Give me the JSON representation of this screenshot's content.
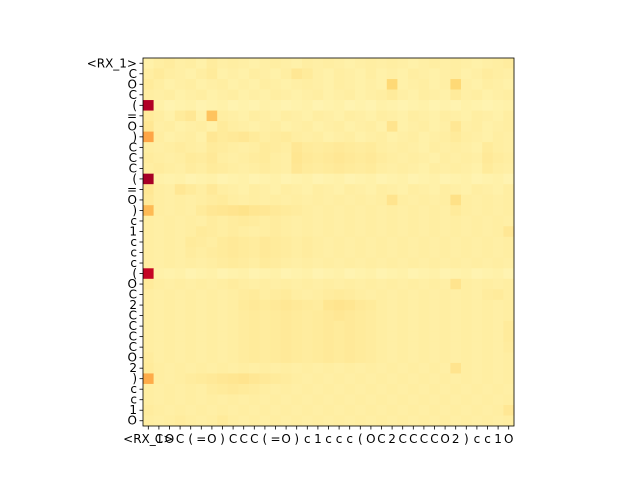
{
  "chart_data": {
    "type": "heatmap",
    "title": "",
    "xlabel": "",
    "ylabel": "",
    "row_labels": [
      "<RX_1>",
      "C",
      "O",
      "C",
      "(",
      "=",
      "O",
      ")",
      "C",
      "C",
      "C",
      "(",
      "=",
      "O",
      ")",
      "c",
      "1",
      "c",
      "c",
      "c",
      "(",
      "O",
      "C",
      "2",
      "C",
      "C",
      "C",
      "C",
      "O",
      "2",
      ")",
      "c",
      "c",
      "1",
      "O"
    ],
    "col_labels": [
      "<RX_1>",
      "C",
      "O",
      "C",
      "(",
      "=",
      "O",
      ")",
      "C",
      "C",
      "C",
      "(",
      "=",
      "O",
      ")",
      "c",
      "1",
      "c",
      "c",
      "c",
      "(",
      "O",
      "C",
      "2",
      "C",
      "C",
      "C",
      "C",
      "O",
      "2",
      ")",
      "c",
      "c",
      "1",
      "O"
    ],
    "colormap": "YlOrRd",
    "colormap_stops": [
      "#ffffcc",
      "#ffeda0",
      "#fed976",
      "#feb24c",
      "#fd8d3c",
      "#fc4e2a",
      "#e31a1c",
      "#bd0026",
      "#800026"
    ],
    "value_range": [
      0,
      1
    ],
    "grid": false,
    "values": [
      [
        0.1,
        0.12,
        0.13,
        0.11,
        0.12,
        0.1,
        0.13,
        0.11,
        0.12,
        0.11,
        0.1,
        0.11,
        0.12,
        0.11,
        0.1,
        0.12,
        0.11,
        0.12,
        0.11,
        0.1,
        0.11,
        0.12,
        0.11,
        0.12,
        0.11,
        0.1,
        0.11,
        0.12,
        0.11,
        0.12,
        0.11,
        0.1,
        0.11,
        0.12,
        0.13
      ],
      [
        0.12,
        0.14,
        0.12,
        0.11,
        0.1,
        0.12,
        0.14,
        0.1,
        0.11,
        0.1,
        0.12,
        0.11,
        0.1,
        0.12,
        0.16,
        0.14,
        0.11,
        0.1,
        0.12,
        0.11,
        0.1,
        0.12,
        0.1,
        0.11,
        0.1,
        0.12,
        0.11,
        0.1,
        0.11,
        0.12,
        0.1,
        0.11,
        0.13,
        0.12,
        0.11
      ],
      [
        0.14,
        0.12,
        0.1,
        0.11,
        0.12,
        0.1,
        0.11,
        0.12,
        0.1,
        0.11,
        0.1,
        0.12,
        0.11,
        0.1,
        0.11,
        0.12,
        0.11,
        0.1,
        0.12,
        0.11,
        0.1,
        0.11,
        0.1,
        0.25,
        0.1,
        0.11,
        0.12,
        0.1,
        0.11,
        0.25,
        0.11,
        0.1,
        0.12,
        0.11,
        0.1
      ],
      [
        0.12,
        0.11,
        0.12,
        0.1,
        0.11,
        0.12,
        0.1,
        0.11,
        0.12,
        0.1,
        0.11,
        0.1,
        0.12,
        0.11,
        0.1,
        0.11,
        0.12,
        0.1,
        0.11,
        0.12,
        0.1,
        0.11,
        0.12,
        0.14,
        0.11,
        0.1,
        0.12,
        0.11,
        0.1,
        0.14,
        0.11,
        0.12,
        0.1,
        0.11,
        0.12
      ],
      [
        0.9,
        0.1,
        0.08,
        0.09,
        0.1,
        0.08,
        0.09,
        0.1,
        0.08,
        0.09,
        0.08,
        0.1,
        0.09,
        0.08,
        0.09,
        0.1,
        0.08,
        0.09,
        0.1,
        0.08,
        0.09,
        0.08,
        0.1,
        0.09,
        0.08,
        0.09,
        0.1,
        0.08,
        0.09,
        0.08,
        0.1,
        0.09,
        0.08,
        0.09,
        0.1
      ],
      [
        0.14,
        0.12,
        0.1,
        0.14,
        0.16,
        0.1,
        0.32,
        0.12,
        0.11,
        0.1,
        0.12,
        0.11,
        0.1,
        0.12,
        0.11,
        0.1,
        0.12,
        0.11,
        0.1,
        0.12,
        0.11,
        0.1,
        0.12,
        0.11,
        0.1,
        0.12,
        0.11,
        0.1,
        0.12,
        0.11,
        0.1,
        0.12,
        0.11,
        0.1,
        0.12
      ],
      [
        0.16,
        0.11,
        0.12,
        0.1,
        0.11,
        0.12,
        0.1,
        0.14,
        0.12,
        0.11,
        0.1,
        0.11,
        0.12,
        0.1,
        0.11,
        0.12,
        0.1,
        0.11,
        0.12,
        0.1,
        0.11,
        0.12,
        0.1,
        0.18,
        0.1,
        0.11,
        0.12,
        0.1,
        0.11,
        0.16,
        0.11,
        0.12,
        0.1,
        0.11,
        0.12
      ],
      [
        0.42,
        0.12,
        0.1,
        0.11,
        0.12,
        0.1,
        0.16,
        0.14,
        0.15,
        0.16,
        0.14,
        0.12,
        0.13,
        0.14,
        0.12,
        0.11,
        0.12,
        0.1,
        0.11,
        0.12,
        0.1,
        0.11,
        0.12,
        0.1,
        0.11,
        0.12,
        0.1,
        0.11,
        0.12,
        0.14,
        0.12,
        0.11,
        0.1,
        0.12,
        0.11
      ],
      [
        0.12,
        0.11,
        0.12,
        0.13,
        0.12,
        0.11,
        0.14,
        0.13,
        0.12,
        0.11,
        0.12,
        0.14,
        0.13,
        0.12,
        0.16,
        0.14,
        0.13,
        0.14,
        0.15,
        0.14,
        0.13,
        0.14,
        0.12,
        0.11,
        0.12,
        0.11,
        0.1,
        0.12,
        0.11,
        0.12,
        0.11,
        0.1,
        0.14,
        0.12,
        0.11
      ],
      [
        0.13,
        0.12,
        0.11,
        0.12,
        0.14,
        0.13,
        0.15,
        0.12,
        0.11,
        0.12,
        0.13,
        0.14,
        0.12,
        0.11,
        0.17,
        0.15,
        0.14,
        0.15,
        0.16,
        0.15,
        0.14,
        0.15,
        0.13,
        0.12,
        0.11,
        0.12,
        0.11,
        0.1,
        0.12,
        0.11,
        0.12,
        0.11,
        0.15,
        0.13,
        0.12
      ],
      [
        0.12,
        0.13,
        0.12,
        0.11,
        0.13,
        0.12,
        0.14,
        0.13,
        0.12,
        0.11,
        0.12,
        0.13,
        0.12,
        0.11,
        0.16,
        0.14,
        0.13,
        0.14,
        0.15,
        0.14,
        0.13,
        0.14,
        0.12,
        0.11,
        0.12,
        0.11,
        0.1,
        0.12,
        0.11,
        0.12,
        0.11,
        0.1,
        0.14,
        0.12,
        0.11
      ],
      [
        0.92,
        0.1,
        0.09,
        0.1,
        0.08,
        0.09,
        0.1,
        0.08,
        0.09,
        0.1,
        0.08,
        0.09,
        0.1,
        0.08,
        0.09,
        0.1,
        0.08,
        0.09,
        0.1,
        0.08,
        0.09,
        0.1,
        0.08,
        0.09,
        0.1,
        0.08,
        0.09,
        0.1,
        0.08,
        0.09,
        0.1,
        0.08,
        0.09,
        0.1,
        0.08
      ],
      [
        0.16,
        0.12,
        0.11,
        0.16,
        0.14,
        0.12,
        0.15,
        0.12,
        0.11,
        0.1,
        0.12,
        0.11,
        0.1,
        0.12,
        0.11,
        0.1,
        0.12,
        0.11,
        0.1,
        0.12,
        0.11,
        0.1,
        0.12,
        0.11,
        0.1,
        0.12,
        0.11,
        0.1,
        0.12,
        0.11,
        0.1,
        0.12,
        0.11,
        0.1,
        0.12
      ],
      [
        0.15,
        0.12,
        0.11,
        0.12,
        0.11,
        0.12,
        0.13,
        0.14,
        0.12,
        0.11,
        0.12,
        0.11,
        0.12,
        0.11,
        0.12,
        0.11,
        0.12,
        0.11,
        0.12,
        0.11,
        0.12,
        0.11,
        0.12,
        0.18,
        0.12,
        0.11,
        0.12,
        0.11,
        0.12,
        0.2,
        0.12,
        0.11,
        0.12,
        0.11,
        0.12
      ],
      [
        0.35,
        0.12,
        0.11,
        0.12,
        0.11,
        0.14,
        0.16,
        0.17,
        0.18,
        0.19,
        0.17,
        0.16,
        0.15,
        0.14,
        0.13,
        0.12,
        0.11,
        0.12,
        0.11,
        0.12,
        0.11,
        0.12,
        0.11,
        0.12,
        0.11,
        0.12,
        0.11,
        0.12,
        0.11,
        0.14,
        0.12,
        0.11,
        0.12,
        0.11,
        0.12
      ],
      [
        0.12,
        0.11,
        0.12,
        0.11,
        0.12,
        0.11,
        0.13,
        0.12,
        0.13,
        0.14,
        0.13,
        0.12,
        0.13,
        0.12,
        0.11,
        0.12,
        0.11,
        0.12,
        0.11,
        0.12,
        0.11,
        0.12,
        0.11,
        0.12,
        0.11,
        0.12,
        0.11,
        0.12,
        0.11,
        0.12,
        0.11,
        0.12,
        0.11,
        0.12,
        0.11
      ],
      [
        0.12,
        0.11,
        0.12,
        0.11,
        0.12,
        0.14,
        0.13,
        0.12,
        0.13,
        0.12,
        0.11,
        0.12,
        0.13,
        0.12,
        0.11,
        0.12,
        0.11,
        0.12,
        0.11,
        0.12,
        0.11,
        0.12,
        0.11,
        0.12,
        0.11,
        0.12,
        0.11,
        0.12,
        0.11,
        0.12,
        0.11,
        0.12,
        0.11,
        0.12,
        0.16
      ],
      [
        0.12,
        0.11,
        0.12,
        0.11,
        0.14,
        0.13,
        0.12,
        0.14,
        0.15,
        0.14,
        0.13,
        0.15,
        0.14,
        0.13,
        0.12,
        0.13,
        0.12,
        0.11,
        0.12,
        0.11,
        0.12,
        0.11,
        0.12,
        0.11,
        0.12,
        0.11,
        0.12,
        0.11,
        0.12,
        0.11,
        0.12,
        0.11,
        0.12,
        0.11,
        0.12
      ],
      [
        0.12,
        0.11,
        0.12,
        0.11,
        0.13,
        0.12,
        0.13,
        0.14,
        0.15,
        0.14,
        0.13,
        0.15,
        0.14,
        0.13,
        0.12,
        0.13,
        0.12,
        0.11,
        0.12,
        0.11,
        0.12,
        0.11,
        0.12,
        0.11,
        0.12,
        0.11,
        0.12,
        0.11,
        0.12,
        0.11,
        0.12,
        0.11,
        0.12,
        0.11,
        0.12
      ],
      [
        0.12,
        0.11,
        0.12,
        0.11,
        0.12,
        0.11,
        0.12,
        0.13,
        0.14,
        0.13,
        0.12,
        0.14,
        0.13,
        0.12,
        0.11,
        0.12,
        0.11,
        0.12,
        0.11,
        0.12,
        0.11,
        0.12,
        0.11,
        0.12,
        0.11,
        0.12,
        0.11,
        0.12,
        0.11,
        0.12,
        0.11,
        0.12,
        0.11,
        0.12,
        0.11
      ],
      [
        0.85,
        0.1,
        0.09,
        0.1,
        0.08,
        0.09,
        0.1,
        0.08,
        0.09,
        0.1,
        0.08,
        0.09,
        0.1,
        0.08,
        0.09,
        0.1,
        0.08,
        0.09,
        0.1,
        0.08,
        0.09,
        0.1,
        0.08,
        0.09,
        0.1,
        0.08,
        0.09,
        0.1,
        0.08,
        0.09,
        0.1,
        0.08,
        0.09,
        0.1,
        0.08
      ],
      [
        0.14,
        0.12,
        0.11,
        0.12,
        0.11,
        0.12,
        0.11,
        0.12,
        0.13,
        0.12,
        0.11,
        0.12,
        0.11,
        0.12,
        0.11,
        0.12,
        0.11,
        0.12,
        0.11,
        0.12,
        0.11,
        0.12,
        0.11,
        0.12,
        0.11,
        0.12,
        0.11,
        0.12,
        0.11,
        0.18,
        0.12,
        0.11,
        0.12,
        0.11,
        0.12
      ],
      [
        0.12,
        0.11,
        0.12,
        0.11,
        0.12,
        0.11,
        0.12,
        0.11,
        0.12,
        0.13,
        0.14,
        0.12,
        0.13,
        0.14,
        0.12,
        0.11,
        0.12,
        0.13,
        0.14,
        0.13,
        0.12,
        0.11,
        0.12,
        0.11,
        0.12,
        0.11,
        0.12,
        0.11,
        0.12,
        0.11,
        0.12,
        0.11,
        0.13,
        0.14,
        0.12
      ],
      [
        0.12,
        0.11,
        0.12,
        0.11,
        0.12,
        0.11,
        0.12,
        0.11,
        0.12,
        0.14,
        0.15,
        0.14,
        0.15,
        0.16,
        0.15,
        0.14,
        0.13,
        0.17,
        0.18,
        0.17,
        0.15,
        0.14,
        0.12,
        0.11,
        0.12,
        0.11,
        0.12,
        0.11,
        0.12,
        0.11,
        0.12,
        0.11,
        0.12,
        0.11,
        0.12
      ],
      [
        0.12,
        0.11,
        0.12,
        0.11,
        0.12,
        0.11,
        0.12,
        0.11,
        0.12,
        0.13,
        0.14,
        0.13,
        0.14,
        0.15,
        0.14,
        0.13,
        0.14,
        0.15,
        0.16,
        0.15,
        0.14,
        0.13,
        0.12,
        0.11,
        0.12,
        0.11,
        0.12,
        0.11,
        0.12,
        0.11,
        0.12,
        0.11,
        0.12,
        0.11,
        0.12
      ],
      [
        0.12,
        0.11,
        0.12,
        0.11,
        0.12,
        0.11,
        0.12,
        0.11,
        0.12,
        0.13,
        0.14,
        0.13,
        0.14,
        0.15,
        0.14,
        0.13,
        0.14,
        0.15,
        0.14,
        0.15,
        0.14,
        0.13,
        0.12,
        0.11,
        0.12,
        0.11,
        0.12,
        0.11,
        0.12,
        0.11,
        0.12,
        0.11,
        0.12,
        0.11,
        0.14
      ],
      [
        0.12,
        0.11,
        0.12,
        0.11,
        0.12,
        0.11,
        0.12,
        0.11,
        0.12,
        0.13,
        0.14,
        0.13,
        0.14,
        0.15,
        0.14,
        0.13,
        0.14,
        0.15,
        0.14,
        0.15,
        0.14,
        0.13,
        0.12,
        0.11,
        0.12,
        0.11,
        0.12,
        0.11,
        0.12,
        0.11,
        0.12,
        0.11,
        0.12,
        0.11,
        0.14
      ],
      [
        0.12,
        0.11,
        0.12,
        0.11,
        0.12,
        0.11,
        0.12,
        0.11,
        0.12,
        0.13,
        0.14,
        0.13,
        0.14,
        0.15,
        0.14,
        0.13,
        0.14,
        0.15,
        0.14,
        0.15,
        0.14,
        0.13,
        0.12,
        0.11,
        0.12,
        0.11,
        0.12,
        0.11,
        0.12,
        0.11,
        0.12,
        0.11,
        0.12,
        0.11,
        0.13
      ],
      [
        0.13,
        0.11,
        0.12,
        0.11,
        0.12,
        0.11,
        0.12,
        0.11,
        0.12,
        0.13,
        0.14,
        0.13,
        0.14,
        0.15,
        0.14,
        0.13,
        0.14,
        0.15,
        0.14,
        0.15,
        0.14,
        0.13,
        0.12,
        0.11,
        0.12,
        0.11,
        0.12,
        0.11,
        0.12,
        0.11,
        0.12,
        0.11,
        0.12,
        0.11,
        0.12
      ],
      [
        0.14,
        0.12,
        0.11,
        0.12,
        0.11,
        0.12,
        0.11,
        0.12,
        0.11,
        0.12,
        0.11,
        0.12,
        0.11,
        0.12,
        0.11,
        0.12,
        0.11,
        0.12,
        0.11,
        0.12,
        0.11,
        0.12,
        0.11,
        0.12,
        0.11,
        0.12,
        0.11,
        0.12,
        0.11,
        0.18,
        0.12,
        0.11,
        0.12,
        0.11,
        0.12
      ],
      [
        0.4,
        0.12,
        0.11,
        0.12,
        0.13,
        0.14,
        0.15,
        0.16,
        0.17,
        0.18,
        0.16,
        0.15,
        0.14,
        0.13,
        0.12,
        0.11,
        0.12,
        0.11,
        0.12,
        0.11,
        0.12,
        0.11,
        0.12,
        0.11,
        0.12,
        0.11,
        0.12,
        0.11,
        0.12,
        0.11,
        0.12,
        0.11,
        0.12,
        0.11,
        0.12
      ],
      [
        0.12,
        0.11,
        0.12,
        0.11,
        0.12,
        0.11,
        0.13,
        0.14,
        0.15,
        0.14,
        0.13,
        0.12,
        0.11,
        0.12,
        0.11,
        0.12,
        0.11,
        0.12,
        0.11,
        0.12,
        0.11,
        0.12,
        0.11,
        0.12,
        0.11,
        0.12,
        0.11,
        0.12,
        0.11,
        0.12,
        0.11,
        0.12,
        0.11,
        0.12,
        0.11
      ],
      [
        0.12,
        0.11,
        0.12,
        0.11,
        0.12,
        0.11,
        0.12,
        0.11,
        0.12,
        0.11,
        0.12,
        0.11,
        0.12,
        0.11,
        0.12,
        0.11,
        0.12,
        0.11,
        0.12,
        0.11,
        0.12,
        0.11,
        0.12,
        0.11,
        0.12,
        0.11,
        0.12,
        0.11,
        0.12,
        0.11,
        0.12,
        0.11,
        0.12,
        0.11,
        0.12
      ],
      [
        0.13,
        0.12,
        0.11,
        0.12,
        0.11,
        0.12,
        0.11,
        0.12,
        0.11,
        0.12,
        0.11,
        0.12,
        0.11,
        0.12,
        0.11,
        0.12,
        0.11,
        0.12,
        0.11,
        0.12,
        0.11,
        0.12,
        0.11,
        0.12,
        0.11,
        0.12,
        0.11,
        0.12,
        0.11,
        0.12,
        0.11,
        0.12,
        0.11,
        0.12,
        0.16
      ],
      [
        0.12,
        0.11,
        0.12,
        0.13,
        0.12,
        0.11,
        0.12,
        0.14,
        0.12,
        0.11,
        0.12,
        0.11,
        0.12,
        0.11,
        0.12,
        0.11,
        0.12,
        0.11,
        0.12,
        0.11,
        0.12,
        0.11,
        0.12,
        0.11,
        0.12,
        0.11,
        0.12,
        0.11,
        0.12,
        0.11,
        0.12,
        0.11,
        0.12,
        0.11,
        0.12
      ]
    ]
  }
}
